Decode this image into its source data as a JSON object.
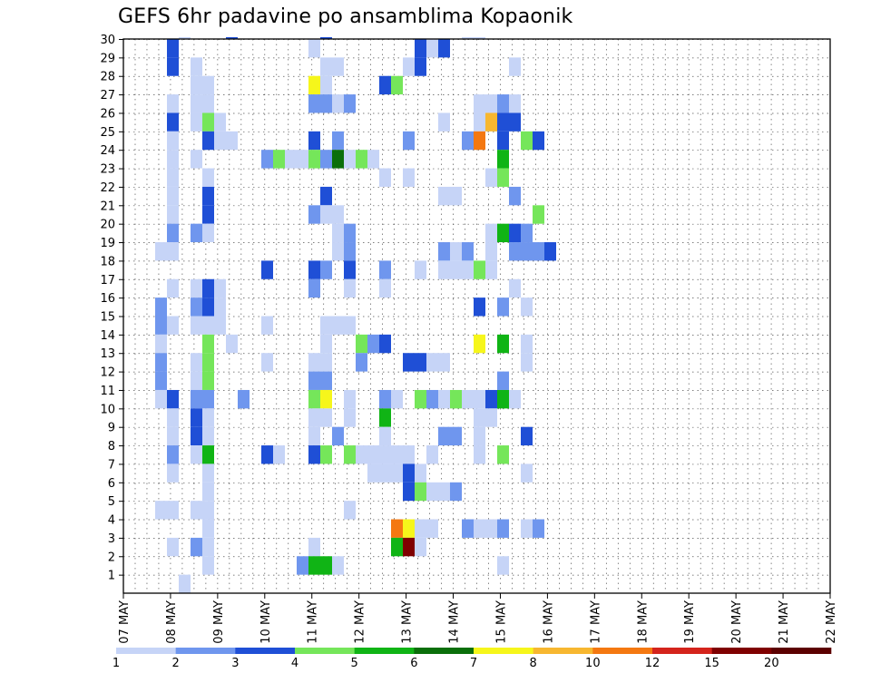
{
  "chart_data": {
    "type": "heatmap",
    "title": "GEFS 6hr padavine po ansamblima Kopaonik",
    "x_tick_labels": [
      "07 MAY",
      "08 MAY",
      "09 MAY",
      "10 MAY",
      "11 MAY",
      "12 MAY",
      "13 MAY",
      "14 MAY",
      "15 MAY",
      "16 MAY",
      "17 MAY",
      "18 MAY",
      "19 MAY",
      "20 MAY",
      "21 MAY",
      "22 MAY"
    ],
    "xlim": [
      0,
      60
    ],
    "y_tick_labels": [
      "1",
      "2",
      "3",
      "4",
      "5",
      "6",
      "7",
      "8",
      "9",
      "10",
      "11",
      "12",
      "13",
      "14",
      "15",
      "16",
      "17",
      "18",
      "19",
      "20",
      "21",
      "22",
      "23",
      "24",
      "25",
      "26",
      "27",
      "28",
      "29",
      "30"
    ],
    "ylim": [
      0,
      30
    ],
    "grid": true,
    "color_scale": {
      "colors": [
        "#c6d4f7",
        "#6f96ee",
        "#1f4fd6",
        "#75e65a",
        "#10b415",
        "#0a6f0a",
        "#f6f61b",
        "#f7b730",
        "#f47811",
        "#d4241c",
        "#7f0000",
        "#5c0000"
      ],
      "tick_labels": [
        "1",
        "2",
        "3",
        "4",
        "5",
        "6",
        "7",
        "8",
        "10",
        "12",
        "15",
        "20"
      ]
    },
    "cells": [
      [
        2,
        0,
        0
      ],
      [
        2,
        30,
        0
      ],
      [
        6,
        30,
        2
      ],
      [
        14,
        30,
        2
      ],
      [
        26,
        30,
        0
      ],
      [
        27,
        30,
        0
      ],
      [
        1,
        29,
        2
      ],
      [
        13,
        29,
        0
      ],
      [
        22,
        29,
        2
      ],
      [
        23,
        29,
        0
      ],
      [
        24,
        29,
        2
      ],
      [
        1,
        28,
        2
      ],
      [
        3,
        28,
        0
      ],
      [
        14,
        28,
        0
      ],
      [
        15,
        28,
        0
      ],
      [
        21,
        28,
        0
      ],
      [
        22,
        28,
        2
      ],
      [
        30,
        28,
        0
      ],
      [
        3,
        27,
        0
      ],
      [
        4,
        27,
        0
      ],
      [
        13,
        27,
        6
      ],
      [
        14,
        27,
        0
      ],
      [
        19,
        27,
        2
      ],
      [
        20,
        27,
        3
      ],
      [
        1,
        26,
        0
      ],
      [
        3,
        26,
        0
      ],
      [
        4,
        26,
        0
      ],
      [
        13,
        26,
        1
      ],
      [
        14,
        26,
        1
      ],
      [
        15,
        26,
        0
      ],
      [
        16,
        26,
        1
      ],
      [
        27,
        26,
        0
      ],
      [
        28,
        26,
        0
      ],
      [
        29,
        26,
        1
      ],
      [
        30,
        26,
        0
      ],
      [
        1,
        25,
        2
      ],
      [
        3,
        25,
        0
      ],
      [
        4,
        25,
        3
      ],
      [
        5,
        25,
        0
      ],
      [
        24,
        25,
        0
      ],
      [
        27,
        25,
        0
      ],
      [
        28,
        25,
        7
      ],
      [
        29,
        25,
        2
      ],
      [
        30,
        25,
        2
      ],
      [
        1,
        24,
        0
      ],
      [
        4,
        24,
        2
      ],
      [
        5,
        24,
        0
      ],
      [
        6,
        24,
        0
      ],
      [
        13,
        24,
        2
      ],
      [
        15,
        24,
        1
      ],
      [
        21,
        24,
        1
      ],
      [
        26,
        24,
        1
      ],
      [
        27,
        24,
        8
      ],
      [
        29,
        24,
        2
      ],
      [
        31,
        24,
        3
      ],
      [
        32,
        24,
        2
      ],
      [
        1,
        23,
        0
      ],
      [
        3,
        23,
        0
      ],
      [
        9,
        23,
        1
      ],
      [
        10,
        23,
        3
      ],
      [
        11,
        23,
        0
      ],
      [
        12,
        23,
        0
      ],
      [
        13,
        23,
        3
      ],
      [
        14,
        23,
        1
      ],
      [
        15,
        23,
        5
      ],
      [
        16,
        23,
        0
      ],
      [
        17,
        23,
        3
      ],
      [
        18,
        23,
        0
      ],
      [
        29,
        23,
        4
      ],
      [
        1,
        22,
        0
      ],
      [
        4,
        22,
        0
      ],
      [
        19,
        22,
        0
      ],
      [
        21,
        22,
        0
      ],
      [
        28,
        22,
        0
      ],
      [
        29,
        22,
        3
      ],
      [
        1,
        21,
        0
      ],
      [
        4,
        21,
        2
      ],
      [
        14,
        21,
        2
      ],
      [
        24,
        21,
        0
      ],
      [
        25,
        21,
        0
      ],
      [
        30,
        21,
        1
      ],
      [
        1,
        20,
        0
      ],
      [
        4,
        20,
        2
      ],
      [
        13,
        20,
        1
      ],
      [
        14,
        20,
        0
      ],
      [
        15,
        20,
        0
      ],
      [
        32,
        20,
        3
      ],
      [
        1,
        19,
        1
      ],
      [
        3,
        19,
        1
      ],
      [
        4,
        19,
        0
      ],
      [
        15,
        19,
        0
      ],
      [
        16,
        19,
        1
      ],
      [
        28,
        19,
        0
      ],
      [
        29,
        19,
        4
      ],
      [
        30,
        19,
        2
      ],
      [
        31,
        19,
        1
      ],
      [
        0,
        18,
        0
      ],
      [
        1,
        18,
        0
      ],
      [
        15,
        18,
        0
      ],
      [
        16,
        18,
        1
      ],
      [
        24,
        18,
        1
      ],
      [
        25,
        18,
        0
      ],
      [
        26,
        18,
        1
      ],
      [
        28,
        18,
        0
      ],
      [
        30,
        18,
        1
      ],
      [
        31,
        18,
        1
      ],
      [
        32,
        18,
        1
      ],
      [
        33,
        18,
        2
      ],
      [
        9,
        17,
        2
      ],
      [
        13,
        17,
        2
      ],
      [
        14,
        17,
        1
      ],
      [
        16,
        17,
        2
      ],
      [
        19,
        17,
        1
      ],
      [
        22,
        17,
        0
      ],
      [
        24,
        17,
        0
      ],
      [
        25,
        17,
        0
      ],
      [
        26,
        17,
        0
      ],
      [
        27,
        17,
        3
      ],
      [
        28,
        17,
        0
      ],
      [
        1,
        16,
        0
      ],
      [
        3,
        16,
        0
      ],
      [
        4,
        16,
        2
      ],
      [
        5,
        16,
        0
      ],
      [
        13,
        16,
        1
      ],
      [
        16,
        16,
        0
      ],
      [
        19,
        16,
        0
      ],
      [
        30,
        16,
        0
      ],
      [
        0,
        15,
        1
      ],
      [
        3,
        15,
        1
      ],
      [
        4,
        15,
        2
      ],
      [
        5,
        15,
        0
      ],
      [
        27,
        15,
        2
      ],
      [
        29,
        15,
        1
      ],
      [
        31,
        15,
        0
      ],
      [
        0,
        14,
        1
      ],
      [
        1,
        14,
        0
      ],
      [
        3,
        14,
        0
      ],
      [
        4,
        14,
        0
      ],
      [
        5,
        14,
        0
      ],
      [
        9,
        14,
        0
      ],
      [
        14,
        14,
        0
      ],
      [
        15,
        14,
        0
      ],
      [
        16,
        14,
        0
      ],
      [
        0,
        13,
        0
      ],
      [
        4,
        13,
        3
      ],
      [
        6,
        13,
        0
      ],
      [
        14,
        13,
        0
      ],
      [
        17,
        13,
        3
      ],
      [
        18,
        13,
        1
      ],
      [
        19,
        13,
        2
      ],
      [
        27,
        13,
        6
      ],
      [
        29,
        13,
        4
      ],
      [
        31,
        13,
        0
      ],
      [
        0,
        12,
        1
      ],
      [
        3,
        12,
        0
      ],
      [
        4,
        12,
        3
      ],
      [
        9,
        12,
        0
      ],
      [
        13,
        12,
        0
      ],
      [
        14,
        12,
        0
      ],
      [
        17,
        12,
        1
      ],
      [
        21,
        12,
        2
      ],
      [
        22,
        12,
        2
      ],
      [
        23,
        12,
        0
      ],
      [
        24,
        12,
        0
      ],
      [
        31,
        12,
        0
      ],
      [
        0,
        11,
        1
      ],
      [
        3,
        11,
        0
      ],
      [
        4,
        11,
        3
      ],
      [
        13,
        11,
        1
      ],
      [
        14,
        11,
        1
      ],
      [
        29,
        11,
        1
      ],
      [
        0,
        10,
        0
      ],
      [
        1,
        10,
        2
      ],
      [
        3,
        10,
        1
      ],
      [
        4,
        10,
        1
      ],
      [
        7,
        10,
        1
      ],
      [
        13,
        10,
        3
      ],
      [
        14,
        10,
        6
      ],
      [
        16,
        10,
        0
      ],
      [
        19,
        10,
        1
      ],
      [
        20,
        10,
        0
      ],
      [
        22,
        10,
        3
      ],
      [
        23,
        10,
        1
      ],
      [
        24,
        10,
        0
      ],
      [
        25,
        10,
        3
      ],
      [
        26,
        10,
        0
      ],
      [
        27,
        10,
        0
      ],
      [
        28,
        10,
        2
      ],
      [
        29,
        10,
        4
      ],
      [
        30,
        10,
        0
      ],
      [
        1,
        9,
        0
      ],
      [
        3,
        9,
        2
      ],
      [
        4,
        9,
        0
      ],
      [
        13,
        9,
        0
      ],
      [
        14,
        9,
        0
      ],
      [
        16,
        9,
        0
      ],
      [
        19,
        9,
        4
      ],
      [
        27,
        9,
        0
      ],
      [
        28,
        9,
        0
      ],
      [
        1,
        8,
        0
      ],
      [
        3,
        8,
        2
      ],
      [
        4,
        8,
        0
      ],
      [
        13,
        8,
        0
      ],
      [
        15,
        8,
        1
      ],
      [
        19,
        8,
        0
      ],
      [
        24,
        8,
        1
      ],
      [
        25,
        8,
        1
      ],
      [
        27,
        8,
        0
      ],
      [
        31,
        8,
        2
      ],
      [
        1,
        7,
        1
      ],
      [
        3,
        7,
        0
      ],
      [
        4,
        7,
        4
      ],
      [
        9,
        7,
        2
      ],
      [
        10,
        7,
        0
      ],
      [
        13,
        7,
        2
      ],
      [
        14,
        7,
        3
      ],
      [
        16,
        7,
        3
      ],
      [
        17,
        7,
        0
      ],
      [
        18,
        7,
        0
      ],
      [
        19,
        7,
        0
      ],
      [
        20,
        7,
        0
      ],
      [
        21,
        7,
        0
      ],
      [
        23,
        7,
        0
      ],
      [
        27,
        7,
        0
      ],
      [
        29,
        7,
        3
      ],
      [
        1,
        6,
        0
      ],
      [
        4,
        6,
        0
      ],
      [
        18,
        6,
        0
      ],
      [
        19,
        6,
        0
      ],
      [
        20,
        6,
        0
      ],
      [
        21,
        6,
        2
      ],
      [
        22,
        6,
        0
      ],
      [
        31,
        6,
        0
      ],
      [
        4,
        5,
        0
      ],
      [
        21,
        5,
        2
      ],
      [
        22,
        5,
        3
      ],
      [
        23,
        5,
        0
      ],
      [
        24,
        5,
        0
      ],
      [
        25,
        5,
        1
      ],
      [
        0,
        4,
        0
      ],
      [
        1,
        4,
        0
      ],
      [
        3,
        4,
        0
      ],
      [
        4,
        4,
        0
      ],
      [
        16,
        4,
        0
      ],
      [
        4,
        3,
        0
      ],
      [
        20,
        3,
        8
      ],
      [
        21,
        3,
        6
      ],
      [
        22,
        3,
        0
      ],
      [
        23,
        3,
        0
      ],
      [
        26,
        3,
        1
      ],
      [
        27,
        3,
        0
      ],
      [
        28,
        3,
        0
      ],
      [
        29,
        3,
        1
      ],
      [
        31,
        3,
        0
      ],
      [
        32,
        3,
        1
      ],
      [
        1,
        2,
        0
      ],
      [
        3,
        2,
        1
      ],
      [
        4,
        2,
        0
      ],
      [
        13,
        2,
        0
      ],
      [
        20,
        2,
        4
      ],
      [
        21,
        2,
        10
      ],
      [
        22,
        2,
        0
      ],
      [
        4,
        1,
        0
      ],
      [
        12,
        1,
        1
      ],
      [
        13,
        1,
        4
      ],
      [
        14,
        1,
        4
      ],
      [
        15,
        1,
        0
      ],
      [
        29,
        1,
        0
      ]
    ]
  }
}
